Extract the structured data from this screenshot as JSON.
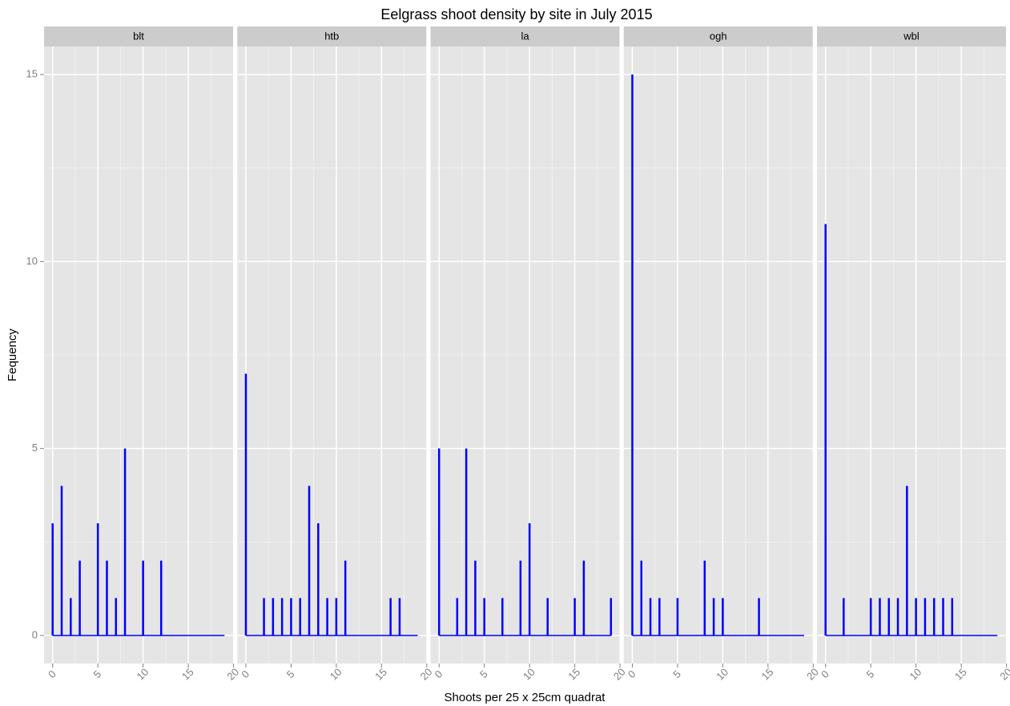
{
  "chart_data": {
    "type": "bar",
    "title": "Eelgrass shoot density by site in July 2015",
    "x_label": "Shoots per 25 x 25cm quadrat",
    "y_label": "Fequency",
    "x": [
      0,
      1,
      2,
      3,
      4,
      5,
      6,
      7,
      8,
      9,
      10,
      11,
      12,
      13,
      14,
      15,
      16,
      17,
      18,
      19
    ],
    "xlim": [
      -0.95,
      19.95
    ],
    "xticks": [
      0,
      5,
      10,
      15,
      20
    ],
    "xminor": [
      2.5,
      7.5,
      12.5,
      17.5
    ],
    "ylim": [
      -0.75,
      15.75
    ],
    "yticks": [
      0,
      5,
      10,
      15
    ],
    "yminor": [
      2.5,
      7.5,
      12.5
    ],
    "grid": true,
    "color": "#0000ff",
    "panels": [
      {
        "label": "blt",
        "values": [
          3,
          4,
          1,
          2,
          0,
          3,
          2,
          1,
          5,
          0,
          2,
          0,
          2,
          0,
          0,
          0,
          0,
          0,
          0,
          0
        ]
      },
      {
        "label": "htb",
        "values": [
          7,
          0,
          1,
          1,
          1,
          1,
          1,
          4,
          3,
          1,
          1,
          2,
          0,
          0,
          0,
          0,
          1,
          1,
          0,
          0
        ]
      },
      {
        "label": "la",
        "values": [
          5,
          0,
          1,
          5,
          2,
          1,
          0,
          1,
          0,
          2,
          3,
          0,
          1,
          0,
          0,
          1,
          2,
          0,
          0,
          1
        ]
      },
      {
        "label": "ogh",
        "values": [
          15,
          2,
          1,
          1,
          0,
          1,
          0,
          0,
          2,
          1,
          1,
          0,
          0,
          0,
          1,
          0,
          0,
          0,
          0,
          0
        ]
      },
      {
        "label": "wbl",
        "values": [
          11,
          0,
          1,
          0,
          0,
          1,
          1,
          1,
          1,
          4,
          1,
          1,
          1,
          1,
          1,
          0,
          0,
          0,
          0,
          0
        ]
      }
    ]
  }
}
